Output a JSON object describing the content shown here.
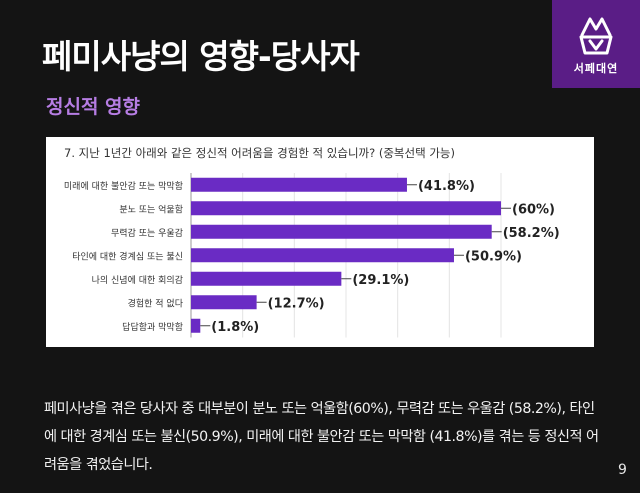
{
  "header": {
    "title": "페미사냥의 영향-당사자",
    "subtitle": "정신적 영향"
  },
  "logo": {
    "text": "서페대연",
    "icon": "feminist-union-logo-icon"
  },
  "chart_data": {
    "type": "bar",
    "orientation": "horizontal",
    "title": "7. 지난 1년간 아래와 같은 정신적 어려움을 경험한 적 있습니까? (중복선택 가능)",
    "categories": [
      "미래에 대한 불안감 또는 막막함",
      "분노 또는 억울함",
      "무력감 또는 우울감",
      "타인에 대한 경계심 또는 불신",
      "나의 신념에 대한 회의감",
      "경험한 적 없다",
      "답답함과 막막함"
    ],
    "values": [
      41.8,
      60,
      58.2,
      50.9,
      29.1,
      12.7,
      1.8
    ],
    "value_labels": [
      "(41.8%)",
      "(60%)",
      "(58.2%)",
      "(50.9%)",
      "(29.1%)",
      "(12.7%)",
      "(1.8%)"
    ],
    "unit": "%",
    "xlim": [
      0,
      60
    ],
    "bar_color": "#6a2bc4",
    "grid": true
  },
  "summary_text": "페미사냥을 겪은 당사자 중 대부분이 분노 또는 억울함(60%), 무력감 또는 우울감 (58.2%), 타인에 대한 경계심 또는 불신(50.9%), 미래에 대한 불안감 또는 막막함 (41.8%)를 겪는 등 정신적 어려움을 겪었습니다.",
  "page_number": "9",
  "colors": {
    "background": "#141414",
    "accent": "#b67de3",
    "bar": "#6a2bc4"
  }
}
